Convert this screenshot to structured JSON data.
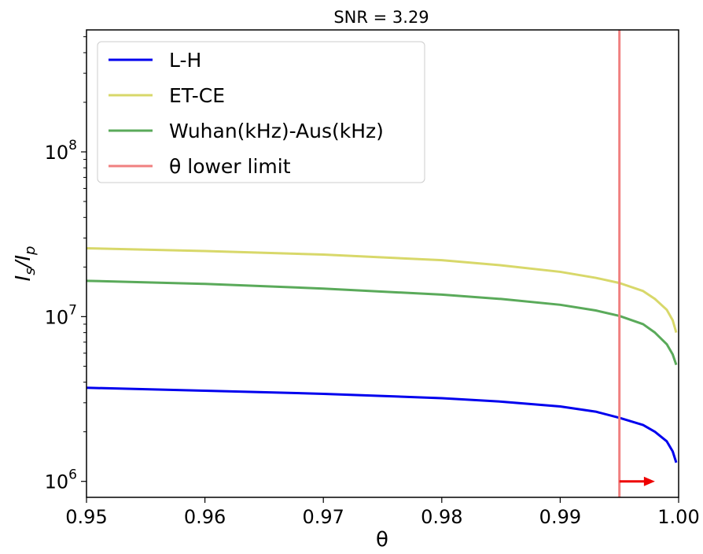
{
  "chart_data": {
    "type": "line",
    "title": "SNR = 3.29",
    "xlabel": "θ",
    "ylabel": {
      "base": "I",
      "sub1": "s",
      "slash": "/",
      "base2": "I",
      "sub2": "p"
    },
    "yscale": "log",
    "xlim": [
      0.95,
      1.0
    ],
    "ylim": [
      800000,
      550000000
    ],
    "x_ticks": [
      0.95,
      0.96,
      0.97,
      0.98,
      0.99,
      1.0
    ],
    "x_tick_labels": [
      "0.95",
      "0.96",
      "0.97",
      "0.98",
      "0.99",
      "1.00"
    ],
    "y_ticks": [
      {
        "value": 1000000,
        "base": "10",
        "exp": "6"
      },
      {
        "value": 10000000,
        "base": "10",
        "exp": "7"
      },
      {
        "value": 100000000,
        "base": "10",
        "exp": "8"
      }
    ],
    "grid": false,
    "legend_position": "top-left",
    "series": [
      {
        "name": "L-H",
        "color": "#0000ee",
        "x": [
          0.95,
          0.96,
          0.97,
          0.98,
          0.985,
          0.99,
          0.993,
          0.995,
          0.997,
          0.998,
          0.999,
          0.9995,
          0.9998
        ],
        "y": [
          3700000,
          3550000,
          3400000,
          3200000,
          3050000,
          2850000,
          2650000,
          2430000,
          2200000,
          2000000,
          1750000,
          1520000,
          1300000
        ]
      },
      {
        "name": "ET-CE",
        "color": "#d8d86a",
        "x": [
          0.95,
          0.96,
          0.97,
          0.98,
          0.985,
          0.99,
          0.993,
          0.995,
          0.997,
          0.998,
          0.999,
          0.9995,
          0.9998
        ],
        "y": [
          26000000,
          25000000,
          23800000,
          22000000,
          20500000,
          18700000,
          17200000,
          16000000,
          14300000,
          12800000,
          11000000,
          9500000,
          8000000
        ]
      },
      {
        "name": "Wuhan(kHz)-Aus(kHz)",
        "color": "#5aaa5a",
        "x": [
          0.95,
          0.96,
          0.97,
          0.98,
          0.985,
          0.99,
          0.993,
          0.995,
          0.997,
          0.998,
          0.999,
          0.9995,
          0.9998
        ],
        "y": [
          16500000,
          15800000,
          14800000,
          13600000,
          12800000,
          11800000,
          10900000,
          10100000,
          9000000,
          8000000,
          6800000,
          5900000,
          5100000
        ]
      }
    ],
    "vline": {
      "name": "θ lower limit",
      "x": 0.995,
      "color": "#f08080"
    },
    "arrow": {
      "x_start": 0.995,
      "x_end": 0.998,
      "y": 1000000,
      "color": "#ee0000"
    }
  }
}
